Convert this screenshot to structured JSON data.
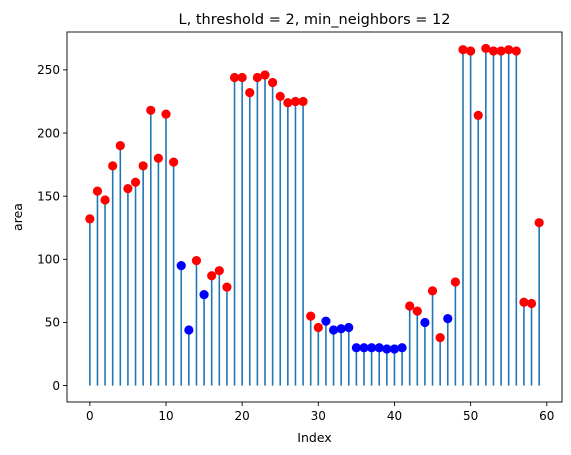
{
  "chart_data": {
    "type": "stem",
    "title": "L, threshold = 2, min_neighbors = 12",
    "xlabel": "Index",
    "ylabel": "area",
    "xlim": [
      -3,
      62
    ],
    "ylim": [
      -13,
      280
    ],
    "xticks": [
      0,
      10,
      20,
      30,
      40,
      50,
      60
    ],
    "yticks": [
      0,
      50,
      100,
      150,
      200,
      250
    ],
    "grid": false,
    "stem_color": "#1f77b4",
    "marker_colors": {
      "red": "#ff0000",
      "blue": "#0000ff"
    },
    "x": [
      0,
      1,
      2,
      3,
      4,
      5,
      6,
      7,
      8,
      9,
      10,
      11,
      12,
      13,
      14,
      15,
      16,
      17,
      18,
      19,
      20,
      21,
      22,
      23,
      24,
      25,
      26,
      27,
      28,
      29,
      30,
      31,
      32,
      33,
      34,
      35,
      36,
      37,
      38,
      39,
      40,
      41,
      42,
      43,
      44,
      45,
      46,
      47,
      48,
      49,
      50,
      51,
      52,
      53,
      54,
      55,
      56,
      57,
      58,
      59
    ],
    "values": [
      132,
      154,
      147,
      174,
      190,
      156,
      161,
      174,
      218,
      180,
      215,
      177,
      95,
      44,
      99,
      72,
      87,
      91,
      78,
      244,
      244,
      232,
      244,
      246,
      240,
      229,
      224,
      225,
      225,
      55,
      46,
      51,
      44,
      45,
      46,
      30,
      30,
      30,
      30,
      29,
      29,
      30,
      63,
      59,
      50,
      75,
      38,
      53,
      82,
      266,
      265,
      214,
      267,
      265,
      265,
      266,
      265,
      66,
      65,
      129
    ],
    "marker_groups": [
      "red",
      "red",
      "red",
      "red",
      "red",
      "red",
      "red",
      "red",
      "red",
      "red",
      "red",
      "red",
      "blue",
      "blue",
      "red",
      "blue",
      "red",
      "red",
      "red",
      "red",
      "red",
      "red",
      "red",
      "red",
      "red",
      "red",
      "red",
      "red",
      "red",
      "red",
      "red",
      "blue",
      "blue",
      "blue",
      "blue",
      "blue",
      "blue",
      "blue",
      "blue",
      "blue",
      "blue",
      "blue",
      "red",
      "red",
      "blue",
      "red",
      "red",
      "blue",
      "red",
      "red",
      "red",
      "red",
      "red",
      "red",
      "red",
      "red",
      "red",
      "red",
      "red",
      "red"
    ]
  }
}
